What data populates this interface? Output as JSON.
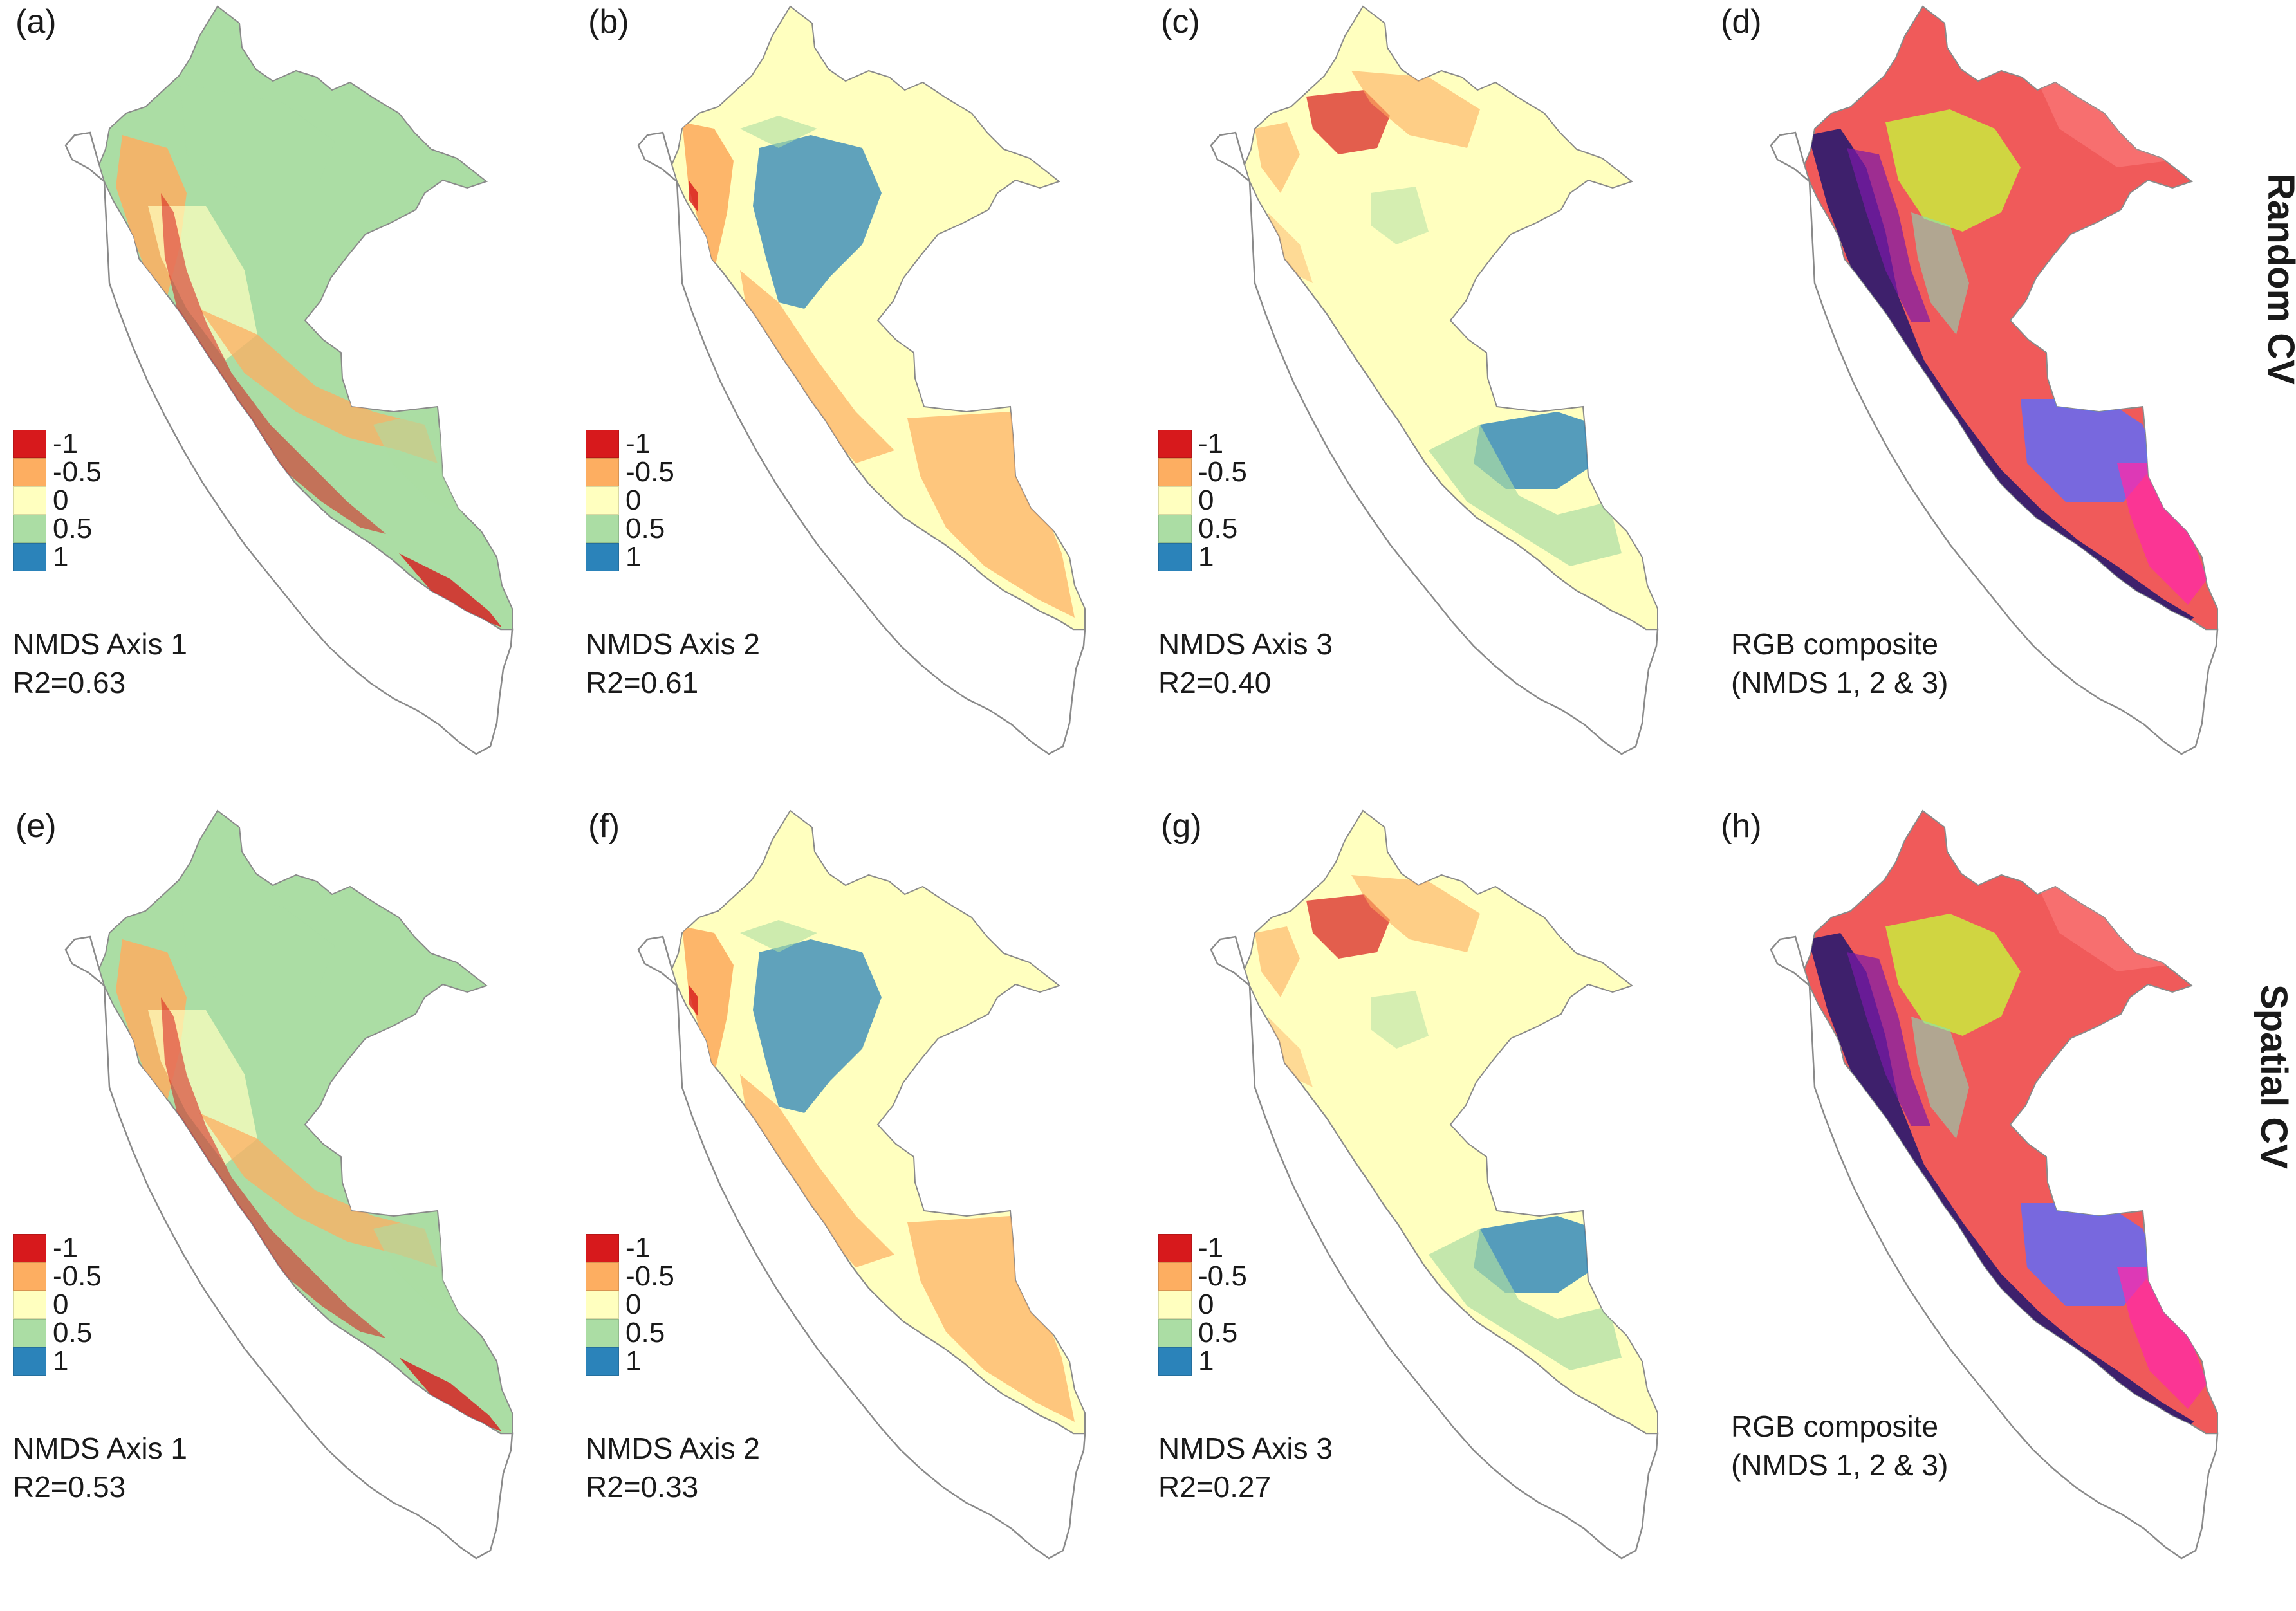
{
  "figure": {
    "legend": [
      {
        "label": "-1",
        "color": "#d7191c"
      },
      {
        "label": "-0.5",
        "color": "#fdae61"
      },
      {
        "label": "0",
        "color": "#ffffbf"
      },
      {
        "label": "0.5",
        "color": "#abdda4"
      },
      {
        "label": "1",
        "color": "#2b83ba"
      }
    ],
    "rows": [
      {
        "label": "Random CV"
      },
      {
        "label": "Spatial CV"
      }
    ],
    "panels": [
      {
        "id": "a",
        "label": "(a)",
        "caption_1": "NMDS Axis 1",
        "caption_2": "R2=0.63",
        "kind": "axis",
        "scheme": "axis1",
        "value_r2": 0.63
      },
      {
        "id": "b",
        "label": "(b)",
        "caption_1": "NMDS Axis 2",
        "caption_2": "R2=0.61",
        "kind": "axis",
        "scheme": "axis2",
        "value_r2": 0.61
      },
      {
        "id": "c",
        "label": "(c)",
        "caption_1": "NMDS Axis 3",
        "caption_2": "R2=0.40",
        "kind": "axis",
        "scheme": "axis3",
        "value_r2": 0.4
      },
      {
        "id": "d",
        "label": "(d)",
        "caption_1": "RGB composite",
        "caption_2": "(NMDS 1, 2 & 3)",
        "kind": "rgb",
        "scheme": "rgb"
      },
      {
        "id": "e",
        "label": "(e)",
        "caption_1": "NMDS Axis 1",
        "caption_2": "R2=0.53",
        "kind": "axis",
        "scheme": "axis1",
        "value_r2": 0.53
      },
      {
        "id": "f",
        "label": "(f)",
        "caption_1": "NMDS Axis 2",
        "caption_2": "R2=0.33",
        "kind": "axis",
        "scheme": "axis2",
        "value_r2": 0.33
      },
      {
        "id": "g",
        "label": "(g)",
        "caption_1": "NMDS Axis 3",
        "caption_2": "R2=0.27",
        "kind": "axis",
        "scheme": "axis3",
        "value_r2": 0.27
      },
      {
        "id": "h",
        "label": "(h)",
        "caption_1": "RGB composite",
        "caption_2": "(NMDS 1, 2 & 3)",
        "kind": "rgb",
        "scheme": "rgb"
      }
    ],
    "colors": {
      "outline": "#8a8a8a",
      "axis1_base": "#abdda4",
      "axis2_base": "#ffffbf",
      "axis3_base": "#ffffbf",
      "rgb_base": "#f05a5a"
    }
  }
}
